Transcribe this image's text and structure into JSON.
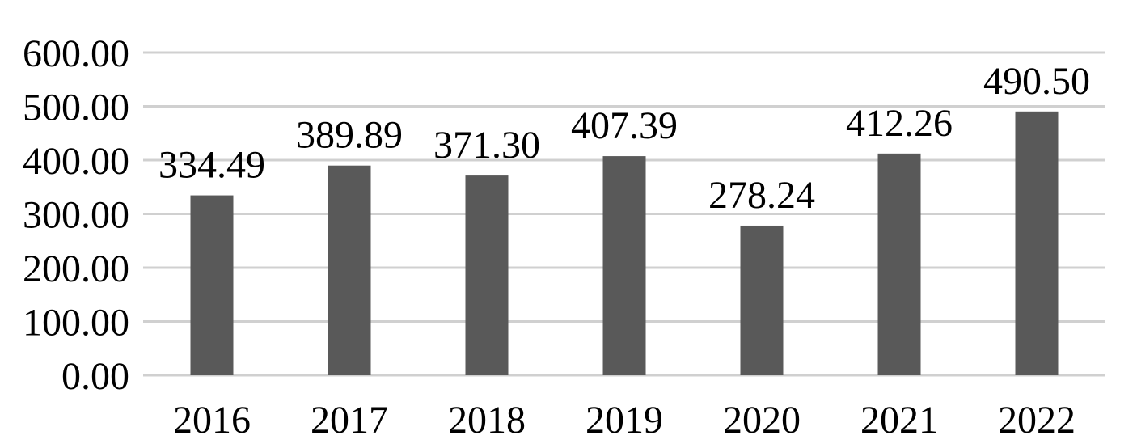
{
  "chart_data": {
    "type": "bar",
    "categories": [
      "2016",
      "2017",
      "2018",
      "2019",
      "2020",
      "2021",
      "2022"
    ],
    "values": [
      334.49,
      389.89,
      371.3,
      407.39,
      278.24,
      412.26,
      490.5
    ],
    "value_labels": [
      "334.49",
      "389.89",
      "371.30",
      "407.39",
      "278.24",
      "412.26",
      "490.50"
    ],
    "y_ticks": [
      "0.00",
      "100.00",
      "200.00",
      "300.00",
      "400.00",
      "500.00",
      "600.00"
    ],
    "ylim": [
      0,
      600
    ],
    "grid": true,
    "legend": "none",
    "title": "",
    "xlabel": "",
    "ylabel": "",
    "colors": {
      "bar": "#595959",
      "grid": "#d0d0d0"
    }
  }
}
